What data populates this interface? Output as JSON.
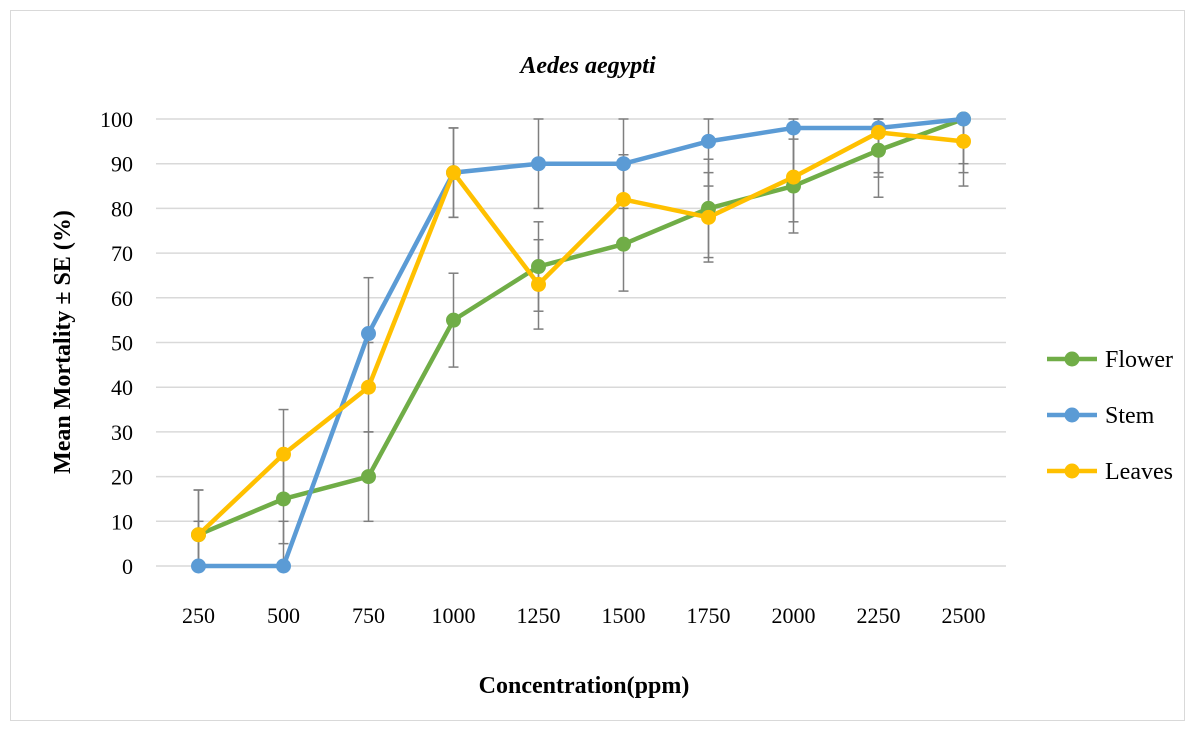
{
  "chart_data": {
    "type": "line",
    "title": "Aedes aegypti",
    "xlabel": "Concentration(ppm)",
    "ylabel": "Mean Mortality ± SE (%)",
    "categories": [
      "250",
      "500",
      "750",
      "1000",
      "1250",
      "1500",
      "1750",
      "2000",
      "2250",
      "2500"
    ],
    "ylim": [
      0,
      100
    ],
    "yticks": [
      0,
      10,
      20,
      30,
      40,
      50,
      60,
      70,
      80,
      90,
      100
    ],
    "grid": true,
    "legend_position": "right",
    "series": [
      {
        "name": "Flower",
        "color": "#70ad47",
        "values": [
          7,
          15,
          20,
          55,
          67,
          72,
          80,
          85,
          93,
          100
        ],
        "error": [
          10,
          10,
          10,
          10.5,
          10,
          10.5,
          11,
          10.5,
          10.5,
          12
        ]
      },
      {
        "name": "Stem",
        "color": "#5b9bd5",
        "values": [
          0,
          0,
          52,
          88,
          90,
          90,
          95,
          98,
          98,
          100
        ],
        "error": [
          10,
          10,
          12.5,
          10,
          10,
          10,
          10,
          10,
          10,
          10
        ]
      },
      {
        "name": "Leaves",
        "color": "#ffc000",
        "values": [
          7,
          25,
          40,
          88,
          63,
          82,
          78,
          87,
          97,
          95
        ],
        "error": [
          10,
          10,
          10,
          10,
          10,
          10,
          10,
          10,
          10,
          10
        ]
      }
    ]
  }
}
